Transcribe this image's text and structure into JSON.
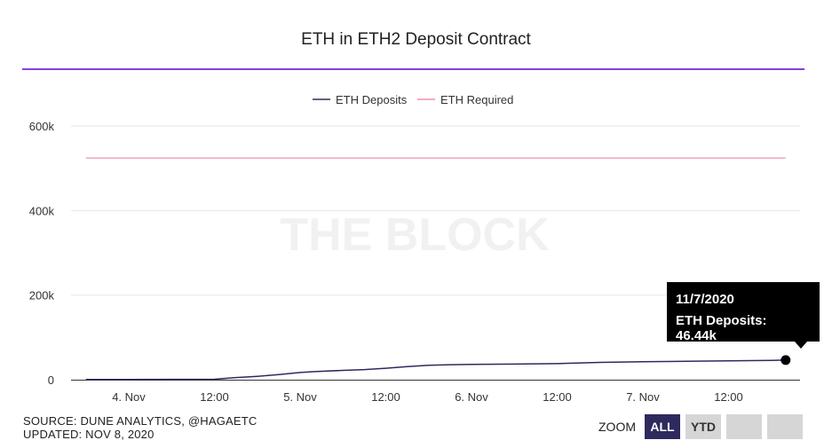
{
  "chart_data": {
    "type": "line",
    "title": "ETH in ETH2 Deposit Contract",
    "watermark": "THE BLOCK",
    "x_ticks": [
      "4. Nov",
      "12:00",
      "5. Nov",
      "12:00",
      "6. Nov",
      "12:00",
      "7. Nov",
      "12:00"
    ],
    "y_ticks": [
      "0",
      "200k",
      "400k",
      "600k"
    ],
    "ylim": [
      0,
      600000
    ],
    "legend_position": "top-center",
    "grid": true,
    "series": [
      {
        "name": "ETH Deposits",
        "color": "#2e2a5e",
        "x": [
          "2020-11-03T18:00",
          "2020-11-04T00:00",
          "2020-11-04T12:00",
          "2020-11-04T15:00",
          "2020-11-04T18:00",
          "2020-11-04T21:00",
          "2020-11-05T00:00",
          "2020-11-05T02:00",
          "2020-11-05T06:00",
          "2020-11-05T09:00",
          "2020-11-05T12:00",
          "2020-11-05T15:00",
          "2020-11-05T18:00",
          "2020-11-05T21:00",
          "2020-11-06T00:00",
          "2020-11-06T06:00",
          "2020-11-06T12:00",
          "2020-11-06T18:00",
          "2020-11-07T00:00",
          "2020-11-07T06:00",
          "2020-11-07T12:00",
          "2020-11-07T18:00",
          "2020-11-07T20:00"
        ],
        "y": [
          500,
          700,
          1000,
          5000,
          8000,
          12000,
          17000,
          19000,
          22000,
          24000,
          27000,
          31000,
          34000,
          35500,
          36000,
          37000,
          38000,
          41000,
          42500,
          43500,
          44500,
          45500,
          46440
        ]
      },
      {
        "name": "ETH Required",
        "color": "#f08fb0",
        "x": [
          "2020-11-03T18:00",
          "2020-11-07T20:00"
        ],
        "y": [
          524288,
          524288
        ]
      }
    ],
    "tooltip": {
      "date": "11/7/2020",
      "text": "ETH Deposits: 46.44k"
    }
  },
  "footer": {
    "source": "SOURCE: DUNE ANALYTICS, @HAGAETC",
    "updated": "UPDATED: NOV 8, 2020"
  },
  "zoom": {
    "label": "ZOOM",
    "buttons": [
      "ALL",
      "YTD",
      "",
      ""
    ],
    "active": "ALL"
  }
}
